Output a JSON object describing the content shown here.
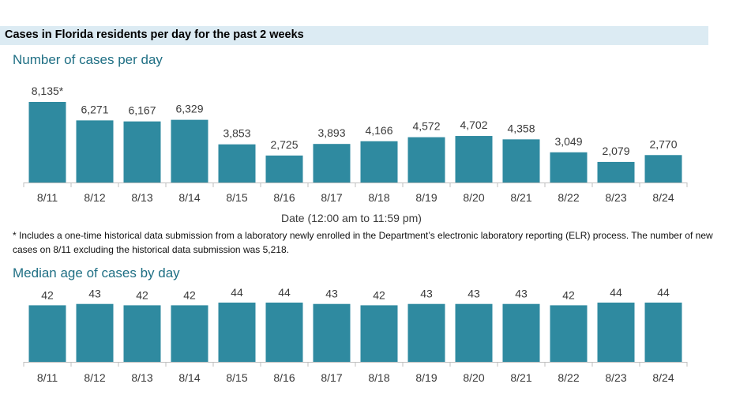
{
  "header": {
    "title": "Cases in Florida residents per day for the past 2 weeks"
  },
  "colors": {
    "bar": "#2f8aa0",
    "axis": "#bfbfbf",
    "title": "#1f6f84",
    "header_bg": "#dcebf3"
  },
  "chart_data": [
    {
      "type": "bar",
      "title": "Number of cases per day",
      "xlabel": "Date (12:00 am to 11:59 pm)",
      "ylabel": "",
      "ylim": [
        0,
        8135
      ],
      "grid": false,
      "categories": [
        "8/11",
        "8/12",
        "8/13",
        "8/14",
        "8/15",
        "8/16",
        "8/17",
        "8/18",
        "8/19",
        "8/20",
        "8/21",
        "8/22",
        "8/23",
        "8/24"
      ],
      "values": [
        8135,
        6271,
        6167,
        6329,
        3853,
        2725,
        3893,
        4166,
        4572,
        4702,
        4358,
        3049,
        2079,
        2770
      ],
      "data_labels": [
        "8,135*",
        "6,271",
        "6,167",
        "6,329",
        "3,853",
        "2,725",
        "3,893",
        "4,166",
        "4,572",
        "4,702",
        "4,358",
        "3,049",
        "2,079",
        "2,770"
      ]
    },
    {
      "type": "bar",
      "title": "Median age of cases by day",
      "xlabel": "",
      "ylabel": "",
      "ylim": [
        0,
        44
      ],
      "grid": false,
      "categories": [
        "8/11",
        "8/12",
        "8/13",
        "8/14",
        "8/15",
        "8/16",
        "8/17",
        "8/18",
        "8/19",
        "8/20",
        "8/21",
        "8/22",
        "8/23",
        "8/24"
      ],
      "values": [
        42,
        43,
        42,
        42,
        44,
        44,
        43,
        42,
        43,
        43,
        43,
        42,
        44,
        44
      ],
      "data_labels": [
        "42",
        "43",
        "42",
        "42",
        "44",
        "44",
        "43",
        "42",
        "43",
        "43",
        "43",
        "42",
        "44",
        "44"
      ]
    }
  ],
  "footnote": "* Includes a one-time historical data submission from a laboratory newly enrolled in the Department’s electronic laboratory reporting (ELR) process. The number of new cases on 8/11 excluding the historical data submission was 5,218."
}
